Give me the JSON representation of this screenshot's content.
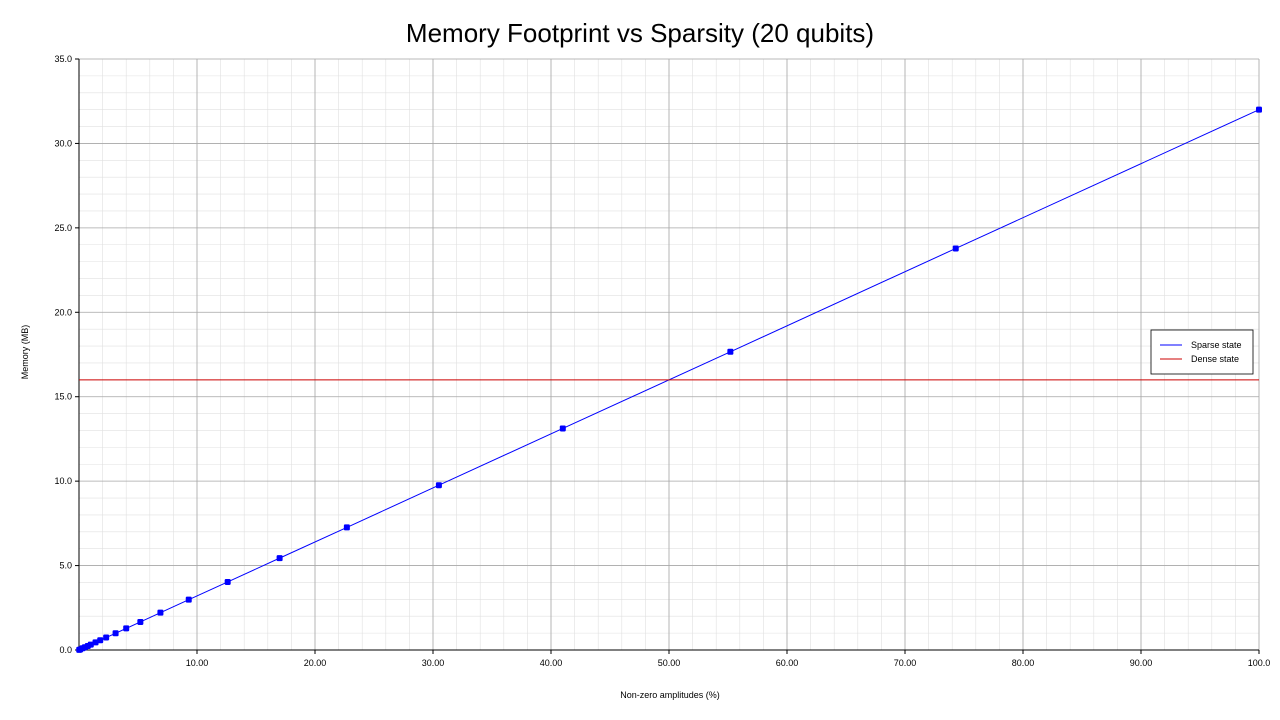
{
  "chart_data": {
    "type": "line",
    "title": "Memory Footprint vs Sparsity (20 qubits)",
    "xlabel": "Non-zero amplitudes (%)",
    "ylabel": "Memory (MB)",
    "xlim": [
      0,
      100
    ],
    "ylim": [
      0,
      35
    ],
    "x_ticks": [
      "10.00",
      "20.00",
      "30.00",
      "40.00",
      "50.00",
      "60.00",
      "70.00",
      "80.00",
      "90.00",
      "100.0"
    ],
    "y_ticks": [
      "0.0",
      "5.0",
      "10.0",
      "15.0",
      "20.0",
      "25.0",
      "30.0",
      "35.0"
    ],
    "grid": true,
    "legend_position": "right",
    "series": [
      {
        "name": "Sparse state",
        "color": "#0000ff",
        "markers": true,
        "x": [
          0.02,
          0.1,
          0.3,
          0.5,
          0.75,
          1.0,
          1.4,
          1.8,
          2.3,
          3.1,
          4.0,
          5.2,
          6.9,
          9.3,
          12.6,
          17.0,
          22.7,
          30.5,
          41.0,
          55.2,
          74.3,
          100.0
        ],
        "y": [
          0.01,
          0.03,
          0.1,
          0.16,
          0.24,
          0.32,
          0.45,
          0.58,
          0.74,
          0.99,
          1.28,
          1.66,
          2.21,
          2.98,
          4.03,
          5.44,
          7.26,
          9.76,
          13.12,
          17.66,
          23.78,
          32.0
        ]
      },
      {
        "name": "Dense state",
        "color": "#cc0000",
        "markers": false,
        "x": [
          0,
          100
        ],
        "y": [
          16.0,
          16.0
        ]
      }
    ]
  }
}
